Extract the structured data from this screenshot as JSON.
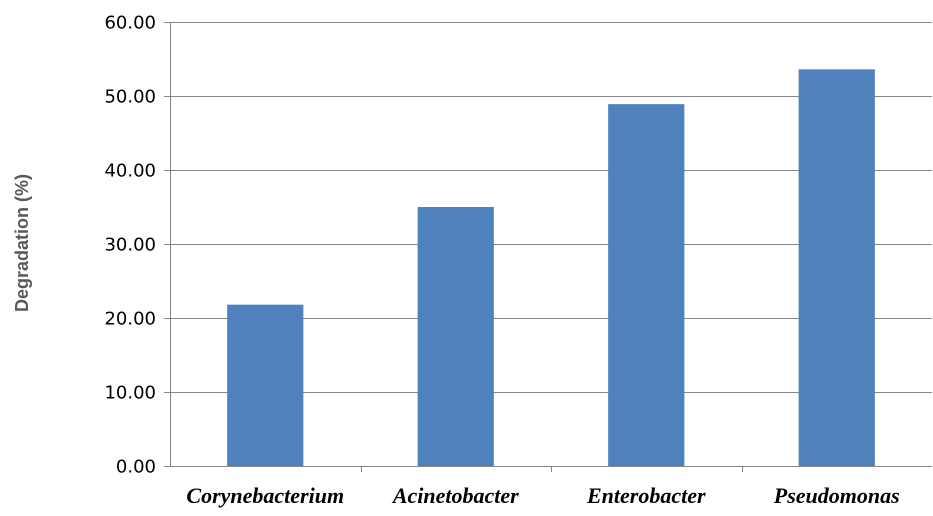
{
  "chart_data": {
    "type": "bar",
    "title": "",
    "xlabel": "",
    "ylabel": "Degradation (%)",
    "categories": [
      "Corynebacterium",
      "Acinetobacter",
      "Enterobacter",
      "Pseudomonas"
    ],
    "values": [
      21.8,
      35.0,
      48.9,
      53.6
    ],
    "ylim": [
      0,
      60
    ],
    "yticks": [
      0,
      10,
      20,
      30,
      40,
      50,
      60
    ],
    "ytick_labels": [
      "0.00",
      "10.00",
      "20.00",
      "30.00",
      "40.00",
      "50.00",
      "60.00"
    ],
    "grid": true,
    "legend": "none",
    "bar_color": "#4f81bd",
    "grid_color": "#868686",
    "category_label_style": "bold-italic"
  }
}
